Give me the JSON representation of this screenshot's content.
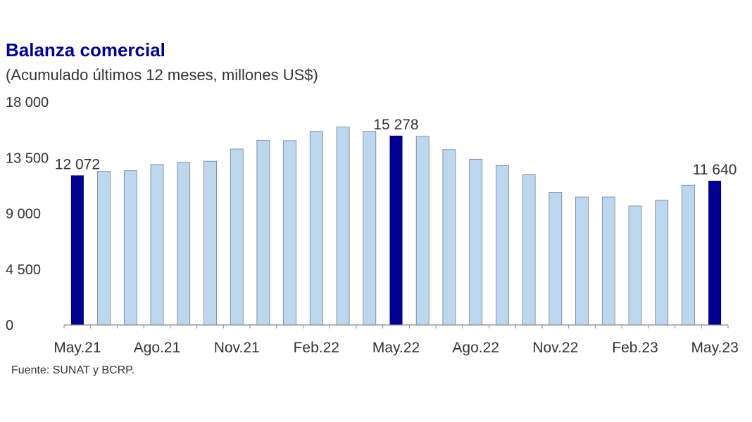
{
  "title": "Balanza comercial",
  "subtitle": "(Acumulado últimos 12 meses, millones US$)",
  "source": "Fuente: SUNAT y BCRP.",
  "colors": {
    "highlight": "#000090",
    "regular": "#bdd7ee",
    "bar_stroke": "#6b7f99",
    "axis": "#888888",
    "title": "#000099"
  },
  "chart_data": {
    "type": "bar",
    "categories": [
      "May.21",
      "Jun.21",
      "Jul.21",
      "Ago.21",
      "Sep.21",
      "Oct.21",
      "Nov.21",
      "Dic.21",
      "Ene.22",
      "Feb.22",
      "Mar.22",
      "Abr.22",
      "May.22",
      "Jun.22",
      "Jul.22",
      "Ago.22",
      "Sep.22",
      "Oct.22",
      "Nov.22",
      "Dic.22",
      "Ene.23",
      "Feb.23",
      "Mar.23",
      "Abr.23",
      "May.23"
    ],
    "values": [
      12072,
      12400,
      12450,
      12950,
      13120,
      13220,
      14200,
      14900,
      14880,
      15640,
      15980,
      15640,
      15278,
      15230,
      14150,
      13380,
      12860,
      12130,
      10700,
      10330,
      10330,
      9600,
      10070,
      11280,
      11640
    ],
    "highlighted": [
      0,
      12,
      24
    ],
    "data_labels": [
      {
        "index": 0,
        "text": "12 072"
      },
      {
        "index": 12,
        "text": "15 278"
      },
      {
        "index": 24,
        "text": "11 640"
      }
    ],
    "x_tick_labels": [
      {
        "index": 0,
        "text": "May.21"
      },
      {
        "index": 3,
        "text": "Ago.21"
      },
      {
        "index": 6,
        "text": "Nov.21"
      },
      {
        "index": 9,
        "text": "Feb.22"
      },
      {
        "index": 12,
        "text": "May.22"
      },
      {
        "index": 15,
        "text": "Ago.22"
      },
      {
        "index": 18,
        "text": "Nov.22"
      },
      {
        "index": 21,
        "text": "Feb.23"
      },
      {
        "index": 24,
        "text": "May.23"
      }
    ],
    "y_ticks": [
      0,
      4500,
      9000,
      13500,
      18000
    ],
    "y_tick_labels": [
      "0",
      "4 500",
      "9 000",
      "13 500",
      "18 000"
    ],
    "ylim": [
      0,
      18000
    ],
    "grid": false,
    "legend": "none",
    "xlabel": "",
    "ylabel": ""
  }
}
